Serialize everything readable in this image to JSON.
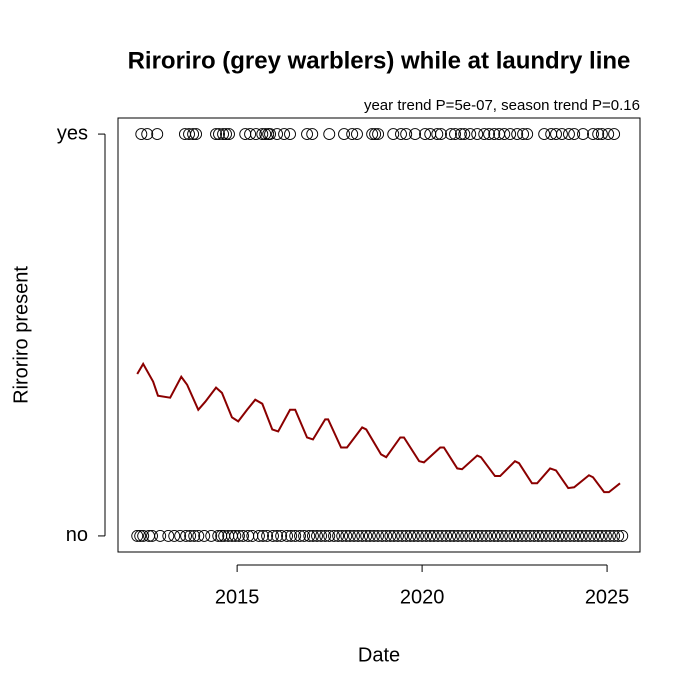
{
  "chart_data": {
    "type": "scatter",
    "title": "Riroriro (grey warblers) while at laundry line",
    "subtitle": "year trend P=5e-07, season trend P=0.16",
    "x_label": "Date",
    "y_label": "Riroriro present",
    "xlim": [
      2011.78,
      2025.89
    ],
    "xticks": [
      2015,
      2020,
      2025
    ],
    "ylim": [
      -0.04,
      1.04
    ],
    "yticks": [
      {
        "value": 0,
        "label": "no"
      },
      {
        "value": 1,
        "label": "yes"
      }
    ],
    "grid": false,
    "series": [
      {
        "type": "scatter",
        "color": "#000000",
        "x": [
          2012.41,
          2012.57,
          2012.84,
          2013.59,
          2013.7,
          2013.81,
          2013.89,
          2014.43,
          2014.51,
          2014.62,
          2014.7,
          2014.78,
          2015.22,
          2015.35,
          2015.51,
          2015.68,
          2015.76,
          2015.84,
          2015.89,
          2016.08,
          2016.27,
          2016.43,
          2016.89,
          2017.03,
          2017.49,
          2017.89,
          2018.11,
          2018.24,
          2018.65,
          2018.73,
          2018.81,
          2019.22,
          2019.43,
          2019.57,
          2019.81,
          2020.08,
          2020.22,
          2020.41,
          2020.51,
          2020.78,
          2020.89,
          2021.05,
          2021.14,
          2021.3,
          2021.49,
          2021.68,
          2021.81,
          2021.95,
          2022.08,
          2022.22,
          2022.38,
          2022.57,
          2022.73,
          2022.84,
          2023.3,
          2023.49,
          2023.62,
          2023.78,
          2023.97,
          2024.11,
          2024.35,
          2024.62,
          2024.76,
          2024.86,
          2025.03,
          2025.19
        ],
        "values": [
          1,
          1,
          1,
          1,
          1,
          1,
          1,
          1,
          1,
          1,
          1,
          1,
          1,
          1,
          1,
          1,
          1,
          1,
          1,
          1,
          1,
          1,
          1,
          1,
          1,
          1,
          1,
          1,
          1,
          1,
          1,
          1,
          1,
          1,
          1,
          1,
          1,
          1,
          1,
          1,
          1,
          1,
          1,
          1,
          1,
          1,
          1,
          1,
          1,
          1,
          1,
          1,
          1,
          1,
          1,
          1,
          1,
          1,
          1,
          1,
          1,
          1,
          1,
          1,
          1,
          1
        ]
      },
      {
        "type": "scatter",
        "color": "#000000",
        "x": [
          2012.3,
          2012.38,
          2012.46,
          2012.62,
          2012.7,
          2012.92,
          2013.14,
          2013.3,
          2013.46,
          2013.62,
          2013.73,
          2013.84,
          2013.95,
          2014.11,
          2014.3,
          2014.49,
          2014.57,
          2014.65,
          2014.76,
          2014.86,
          2014.95,
          2015.05,
          2015.16,
          2015.3,
          2015.41,
          2015.59,
          2015.7,
          2015.81,
          2015.97,
          2016.08,
          2016.19,
          2016.35,
          2016.46,
          2016.57,
          2016.7,
          2016.81,
          2016.95,
          2017.05,
          2017.16,
          2017.27,
          2017.38,
          2017.49,
          2017.62,
          2017.73,
          2017.84,
          2017.95,
          2018.05,
          2018.16,
          2018.27,
          2018.38,
          2018.49,
          2018.59,
          2018.7,
          2018.81,
          2018.92,
          2019.03,
          2019.14,
          2019.24,
          2019.35,
          2019.46,
          2019.57,
          2019.68,
          2019.78,
          2019.89,
          2020.0,
          2020.11,
          2020.22,
          2020.32,
          2020.43,
          2020.54,
          2020.65,
          2020.76,
          2020.86,
          2020.97,
          2021.08,
          2021.19,
          2021.3,
          2021.41,
          2021.51,
          2021.62,
          2021.73,
          2021.84,
          2021.95,
          2022.05,
          2022.16,
          2022.27,
          2022.38,
          2022.49,
          2022.59,
          2022.7,
          2022.81,
          2022.92,
          2023.03,
          2023.14,
          2023.24,
          2023.35,
          2023.46,
          2023.57,
          2023.68,
          2023.78,
          2023.89,
          2024.0,
          2024.11,
          2024.22,
          2024.32,
          2024.43,
          2024.54,
          2024.65,
          2024.76,
          2024.86,
          2024.97,
          2025.08,
          2025.19,
          2025.3,
          2025.41
        ],
        "values": [
          0,
          0,
          0,
          0,
          0,
          0,
          0,
          0,
          0,
          0,
          0,
          0,
          0,
          0,
          0,
          0,
          0,
          0,
          0,
          0,
          0,
          0,
          0,
          0,
          0,
          0,
          0,
          0,
          0,
          0,
          0,
          0,
          0,
          0,
          0,
          0,
          0,
          0,
          0,
          0,
          0,
          0,
          0,
          0,
          0,
          0,
          0,
          0,
          0,
          0,
          0,
          0,
          0,
          0,
          0,
          0,
          0,
          0,
          0,
          0,
          0,
          0,
          0,
          0,
          0,
          0,
          0,
          0,
          0,
          0,
          0,
          0,
          0,
          0,
          0,
          0,
          0,
          0,
          0,
          0,
          0,
          0,
          0,
          0,
          0,
          0,
          0,
          0,
          0,
          0,
          0,
          0,
          0,
          0,
          0,
          0,
          0,
          0,
          0,
          0,
          0,
          0,
          0,
          0,
          0,
          0,
          0,
          0,
          0,
          0,
          0,
          0,
          0,
          0,
          0
        ]
      },
      {
        "type": "line",
        "color": "#8b0000",
        "x": [
          2012.3,
          2012.46,
          2012.73,
          2012.86,
          2013.19,
          2013.49,
          2013.65,
          2013.95,
          2014.14,
          2014.43,
          2014.59,
          2014.86,
          2015.03,
          2015.27,
          2015.49,
          2015.68,
          2015.95,
          2016.11,
          2016.43,
          2016.57,
          2016.89,
          2017.05,
          2017.38,
          2017.46,
          2017.81,
          2017.97,
          2018.38,
          2018.49,
          2018.89,
          2019.03,
          2019.41,
          2019.51,
          2019.92,
          2020.05,
          2020.49,
          2020.59,
          2020.95,
          2021.08,
          2021.49,
          2021.59,
          2021.97,
          2022.11,
          2022.51,
          2022.62,
          2022.97,
          2023.11,
          2023.46,
          2023.62,
          2023.95,
          2024.11,
          2024.51,
          2024.62,
          2024.92,
          2025.05,
          2025.35
        ],
        "values": [
          0.403,
          0.428,
          0.384,
          0.349,
          0.344,
          0.396,
          0.376,
          0.314,
          0.334,
          0.369,
          0.356,
          0.295,
          0.285,
          0.314,
          0.339,
          0.329,
          0.265,
          0.26,
          0.314,
          0.314,
          0.245,
          0.24,
          0.29,
          0.29,
          0.22,
          0.22,
          0.27,
          0.265,
          0.203,
          0.196,
          0.245,
          0.245,
          0.186,
          0.183,
          0.22,
          0.22,
          0.168,
          0.166,
          0.2,
          0.196,
          0.149,
          0.149,
          0.186,
          0.181,
          0.131,
          0.131,
          0.168,
          0.163,
          0.119,
          0.121,
          0.151,
          0.146,
          0.109,
          0.109,
          0.131
        ]
      }
    ]
  }
}
